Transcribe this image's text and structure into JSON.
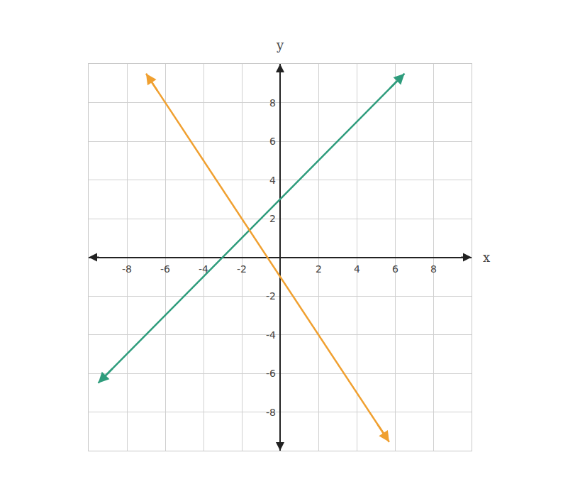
{
  "chart_data": {
    "type": "line",
    "x_label": "x",
    "y_label": "y",
    "xlim": [
      -10,
      10
    ],
    "ylim": [
      -10,
      10
    ],
    "xticks": [
      -8,
      -6,
      -4,
      -2,
      2,
      4,
      6,
      8
    ],
    "yticks": [
      -8,
      -6,
      -4,
      -2,
      2,
      4,
      6,
      8
    ],
    "grid": true,
    "series": [
      {
        "color": "#2e9c7c",
        "x": [
          -9.5,
          6.5
        ],
        "values": [
          -6.5,
          9.5
        ],
        "marker": "arrow"
      },
      {
        "color": "#f0a030",
        "x": [
          -7,
          5.7
        ],
        "values": [
          9.5,
          -9.55
        ],
        "marker": "arrow"
      }
    ]
  }
}
